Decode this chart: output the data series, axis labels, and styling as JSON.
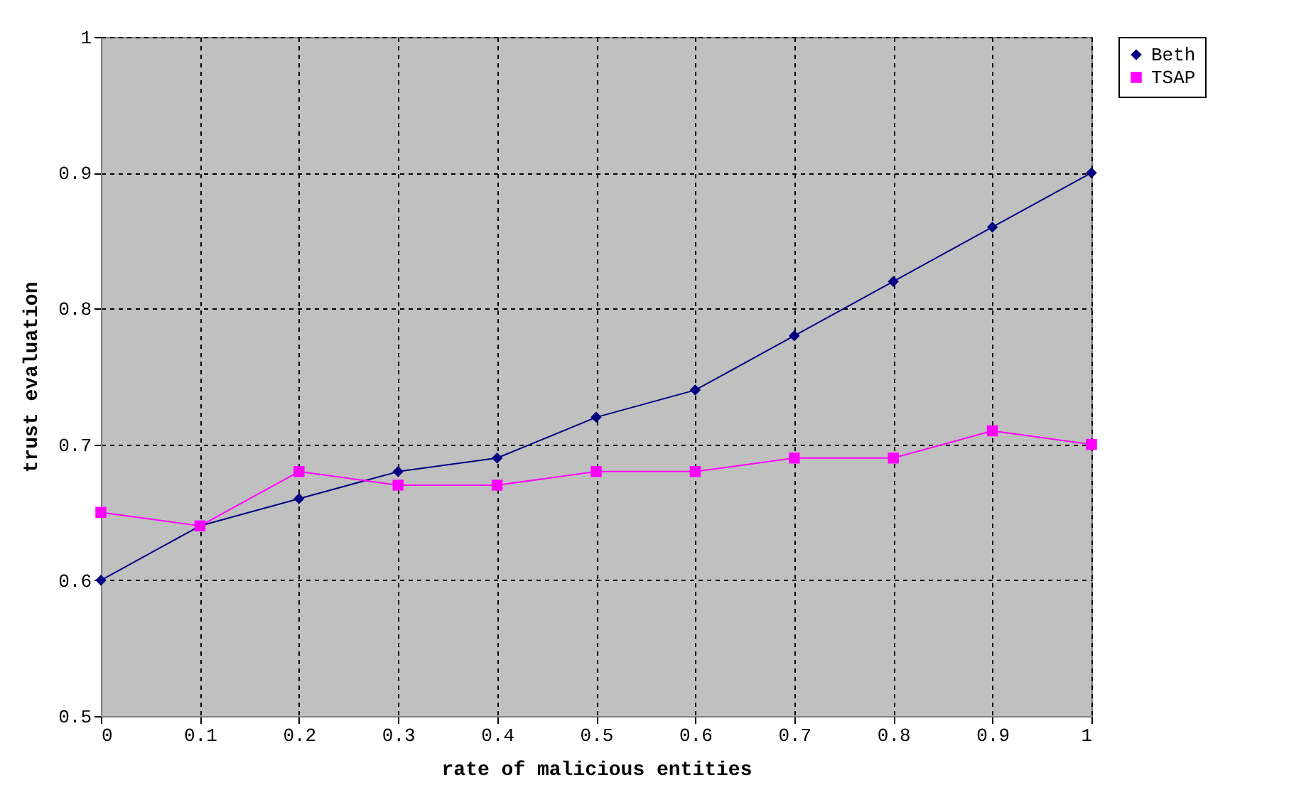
{
  "chart_data": {
    "type": "line",
    "xlabel": "rate of malicious entities",
    "ylabel": "trust evaluation",
    "x": [
      0,
      0.1,
      0.2,
      0.3,
      0.4,
      0.5,
      0.6,
      0.7,
      0.8,
      0.9,
      1
    ],
    "series": [
      {
        "name": "Beth",
        "color": "#000080",
        "marker": "diamond",
        "values": [
          0.6,
          0.64,
          0.66,
          0.68,
          0.69,
          0.72,
          0.74,
          0.78,
          0.82,
          0.86,
          0.9
        ]
      },
      {
        "name": "TSAP",
        "color": "#ff00ff",
        "marker": "square",
        "values": [
          0.65,
          0.64,
          0.68,
          0.67,
          0.67,
          0.68,
          0.68,
          0.69,
          0.69,
          0.71,
          0.7
        ]
      }
    ],
    "xlim": [
      0,
      1
    ],
    "xticks": [
      0,
      0.1,
      0.2,
      0.3,
      0.4,
      0.5,
      0.6,
      0.7,
      0.8,
      0.9,
      1
    ],
    "ylim": [
      0.5,
      1
    ],
    "yticks": [
      0.5,
      0.6,
      0.7,
      0.8,
      0.9,
      1
    ],
    "grid": true,
    "line_style": "solid",
    "legend": "top right"
  }
}
